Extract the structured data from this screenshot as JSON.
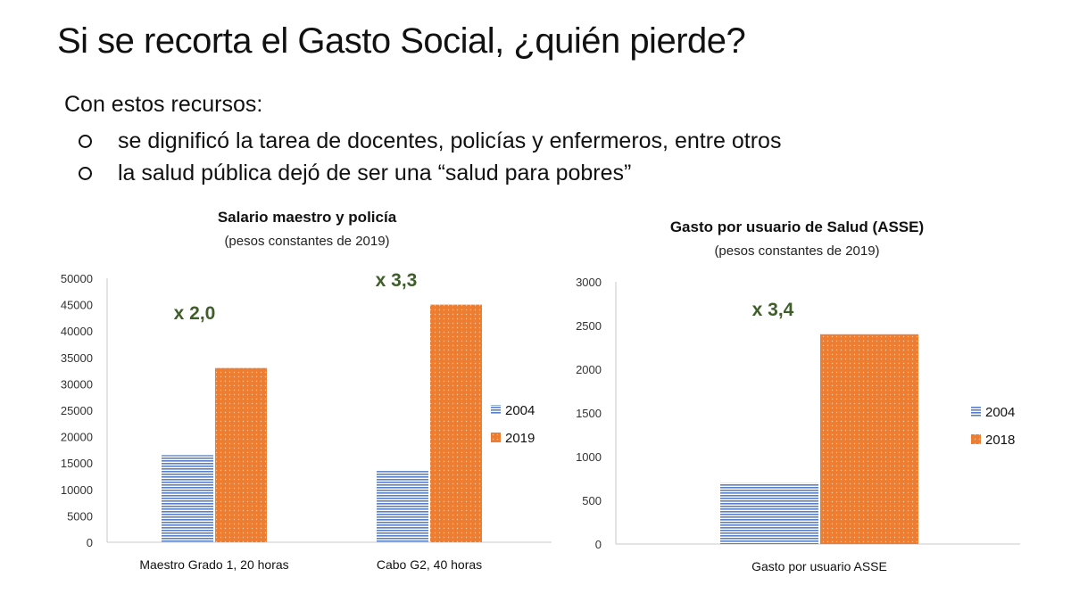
{
  "slide": {
    "title": "Si se recorta el Gasto Social, ¿quién pierde?",
    "intro": "Con estos recursos:",
    "bullets": [
      "se dignificó la tarea de docentes, policías y enfermeros, entre otros",
      "la salud pública dejó de ser una “salud para pobres”"
    ]
  },
  "colors": {
    "series_2004": "#5b7fc4",
    "series_recent": "#ed7d31",
    "annotation": "#3f5f2a"
  },
  "chart_data": [
    {
      "type": "bar",
      "title": "Salario maestro y policía",
      "subtitle": "(pesos constantes de 2019)",
      "categories": [
        "Maestro Grado 1, 20 horas",
        "Cabo G2, 40 horas"
      ],
      "series": [
        {
          "name": "2004",
          "values": [
            16500,
            13500
          ]
        },
        {
          "name": "2019",
          "values": [
            33000,
            45000
          ]
        }
      ],
      "ylim": [
        0,
        50000
      ],
      "yticks": [
        0,
        5000,
        10000,
        15000,
        20000,
        25000,
        30000,
        35000,
        40000,
        45000,
        50000
      ],
      "annotations": [
        "x 2,0",
        "x 3,3"
      ],
      "legend": "right",
      "grid": false
    },
    {
      "type": "bar",
      "title": "Gasto por usuario de Salud (ASSE)",
      "subtitle": "(pesos constantes de 2019)",
      "categories": [
        "Gasto por usuario ASSE"
      ],
      "series": [
        {
          "name": "2004",
          "values": [
            700
          ]
        },
        {
          "name": "2018",
          "values": [
            2400
          ]
        }
      ],
      "ylim": [
        0,
        3000
      ],
      "yticks": [
        0,
        500,
        1000,
        1500,
        2000,
        2500,
        3000
      ],
      "annotations": [
        "x 3,4"
      ],
      "legend": "right",
      "grid": false
    }
  ]
}
